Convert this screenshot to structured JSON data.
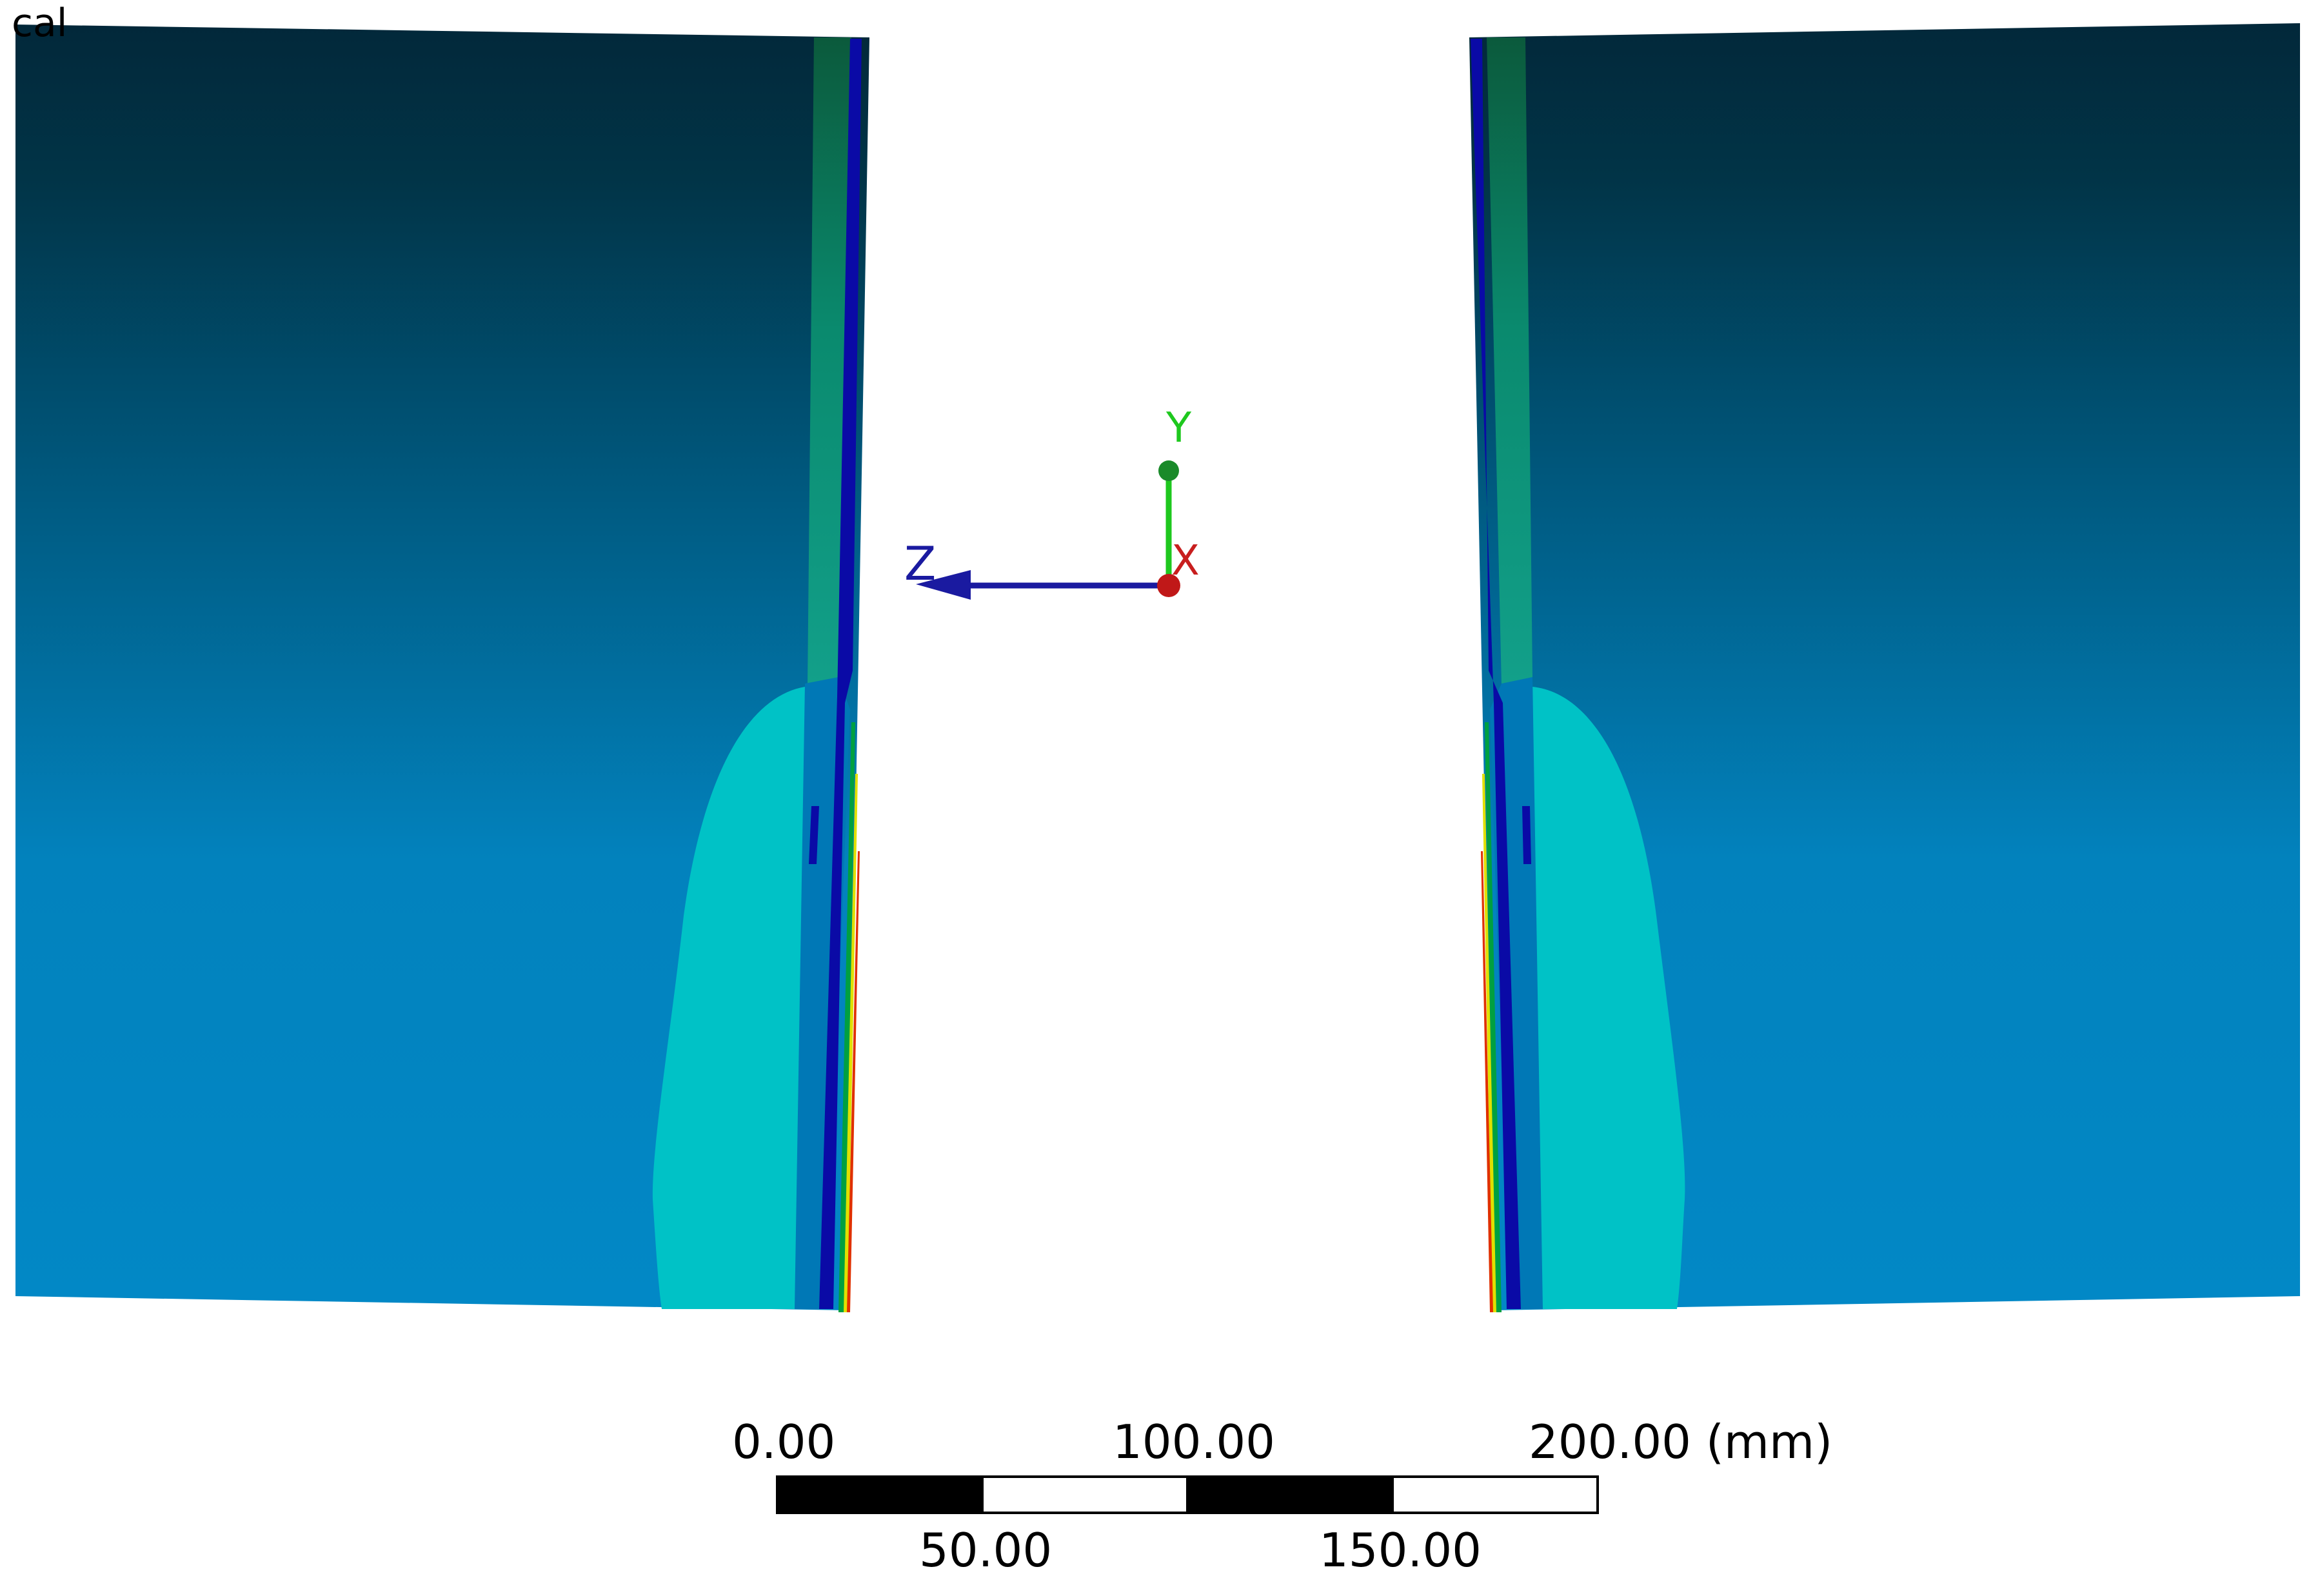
{
  "viewport": {
    "caption": "cal"
  },
  "triad": {
    "axes": [
      {
        "label": "Y",
        "color": "#1ec81e"
      },
      {
        "label": "Z",
        "color": "#1a1aa0"
      },
      {
        "label": "X",
        "color": "#c81e1e"
      }
    ]
  },
  "scale_bar": {
    "top_labels": [
      "0.00",
      "100.00",
      "200.00 (mm)"
    ],
    "bottom_labels": [
      "50.00",
      "150.00"
    ],
    "segment_colors": [
      "#000000",
      "#ffffff",
      "#000000",
      "#ffffff"
    ]
  },
  "colors": {
    "contour_dark": "#02283a",
    "contour_mid": "#005a82",
    "contour_base": "#0284c0",
    "contour_cyan": "#00c2c6",
    "contour_blue": "#0a0aa6",
    "contour_green": "#00a040",
    "contour_yellow": "#e0e000",
    "contour_red": "#e03000"
  }
}
